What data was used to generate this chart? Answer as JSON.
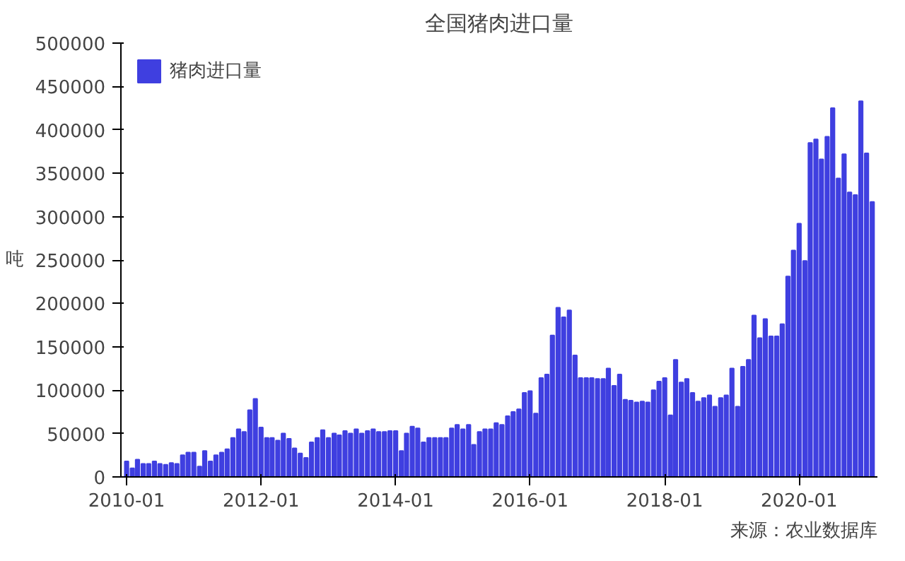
{
  "chart_data": {
    "type": "bar",
    "title": "全国猪肉进口量",
    "ylabel": "吨",
    "x": [
      "2010-01",
      "2010-02",
      "2010-03",
      "2010-04",
      "2010-05",
      "2010-06",
      "2010-07",
      "2010-08",
      "2010-09",
      "2010-10",
      "2010-11",
      "2010-12",
      "2011-01",
      "2011-02",
      "2011-03",
      "2011-04",
      "2011-05",
      "2011-06",
      "2011-07",
      "2011-08",
      "2011-09",
      "2011-10",
      "2011-11",
      "2011-12",
      "2012-01",
      "2012-02",
      "2012-03",
      "2012-04",
      "2012-05",
      "2012-06",
      "2012-07",
      "2012-08",
      "2012-09",
      "2012-10",
      "2012-11",
      "2012-12",
      "2013-01",
      "2013-02",
      "2013-03",
      "2013-04",
      "2013-05",
      "2013-06",
      "2013-07",
      "2013-08",
      "2013-09",
      "2013-10",
      "2013-11",
      "2013-12",
      "2014-01",
      "2014-02",
      "2014-03",
      "2014-04",
      "2014-05",
      "2014-06",
      "2014-07",
      "2014-08",
      "2014-09",
      "2014-10",
      "2014-11",
      "2014-12",
      "2015-01",
      "2015-02",
      "2015-03",
      "2015-04",
      "2015-05",
      "2015-06",
      "2015-07",
      "2015-08",
      "2015-09",
      "2015-10",
      "2015-11",
      "2015-12",
      "2016-01",
      "2016-02",
      "2016-03",
      "2016-04",
      "2016-05",
      "2016-06",
      "2016-07",
      "2016-08",
      "2016-09",
      "2016-10",
      "2016-11",
      "2016-12",
      "2017-01",
      "2017-02",
      "2017-03",
      "2017-04",
      "2017-05",
      "2017-06",
      "2017-07",
      "2017-08",
      "2017-09",
      "2017-10",
      "2017-11",
      "2017-12",
      "2018-01",
      "2018-02",
      "2018-03",
      "2018-04",
      "2018-05",
      "2018-06",
      "2018-07",
      "2018-08",
      "2018-09",
      "2018-10",
      "2018-11",
      "2018-12",
      "2019-01",
      "2019-02",
      "2019-03",
      "2019-04",
      "2019-05",
      "2019-06",
      "2019-07",
      "2019-08",
      "2019-09",
      "2019-10",
      "2019-11",
      "2019-12",
      "2020-01",
      "2020-02",
      "2020-03",
      "2020-04",
      "2020-05",
      "2020-06",
      "2020-07",
      "2020-08",
      "2020-09",
      "2020-10",
      "2020-11",
      "2020-12",
      "2021-01",
      "2021-02"
    ],
    "series": [
      {
        "name": "猪肉进口量",
        "color": "#3f3fe0",
        "values": [
          18000,
          10000,
          20000,
          15000,
          15000,
          18000,
          15000,
          14000,
          16000,
          15000,
          25000,
          28000,
          28000,
          12000,
          30000,
          18000,
          25000,
          28000,
          32000,
          45000,
          55000,
          52000,
          77000,
          90000,
          57000,
          45000,
          45000,
          42000,
          50000,
          44000,
          33000,
          27000,
          22000,
          40000,
          45000,
          54000,
          45000,
          50000,
          48000,
          53000,
          50000,
          55000,
          50000,
          53000,
          55000,
          52000,
          52000,
          53000,
          53000,
          30000,
          50000,
          58000,
          56000,
          40000,
          45000,
          45000,
          45000,
          45000,
          56000,
          60000,
          55000,
          60000,
          37000,
          52000,
          55000,
          55000,
          62000,
          60000,
          70000,
          75000,
          78000,
          97000,
          99000,
          73000,
          114000,
          118000,
          163000,
          195000,
          184000,
          192000,
          140000,
          114000,
          114000,
          114000,
          113000,
          113000,
          125000,
          105000,
          118000,
          89000,
          88000,
          86000,
          87000,
          86000,
          100000,
          110000,
          114000,
          71000,
          135000,
          109000,
          113000,
          97000,
          87000,
          91000,
          94000,
          81000,
          91000,
          94000,
          125000,
          81000,
          127000,
          135000,
          186000,
          160000,
          182000,
          162000,
          162000,
          176000,
          231000,
          261000,
          292000,
          249000,
          385000,
          389000,
          366000,
          392000,
          425000,
          344000,
          372000,
          328000,
          325000,
          433000,
          373000,
          317000
        ]
      }
    ],
    "xlim": [
      "2009-12-01",
      "2021-03-01"
    ],
    "xticks": [
      {
        "value": "2010-01",
        "label": "2010-01"
      },
      {
        "value": "2012-01",
        "label": "2012-01"
      },
      {
        "value": "2014-01",
        "label": "2014-01"
      },
      {
        "value": "2016-01",
        "label": "2016-01"
      },
      {
        "value": "2018-01",
        "label": "2018-01"
      },
      {
        "value": "2020-01",
        "label": "2020-01"
      }
    ],
    "ylim": [
      0,
      500000
    ],
    "yticks": [
      0,
      50000,
      100000,
      150000,
      200000,
      250000,
      300000,
      350000,
      400000,
      450000,
      500000
    ],
    "legend": "top left",
    "grid": false,
    "annotations": [
      "来源：农业数据库"
    ]
  }
}
